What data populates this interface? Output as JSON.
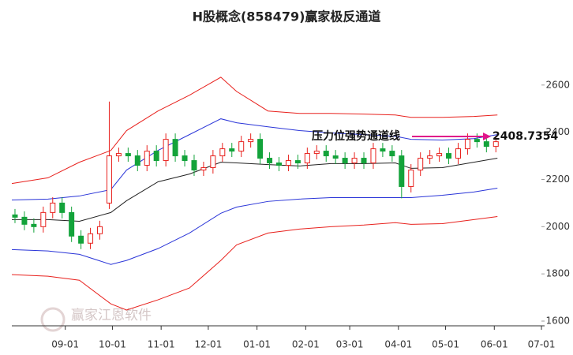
{
  "chart_data": {
    "type": "candlestick",
    "title": "H股概念(858479)赢家极反通道",
    "xlim": [
      0,
      339
    ],
    "ylim": [
      1580,
      2860
    ],
    "xticks": [
      {
        "value": 34,
        "label": "09-01"
      },
      {
        "value": 64,
        "label": "10-01"
      },
      {
        "value": 95,
        "label": "11-01"
      },
      {
        "value": 125,
        "label": "12-01"
      },
      {
        "value": 156,
        "label": "01-01"
      },
      {
        "value": 187,
        "label": "02-01"
      },
      {
        "value": 215,
        "label": "03-01"
      },
      {
        "value": 246,
        "label": "04-01"
      },
      {
        "value": 276,
        "label": "05-01"
      },
      {
        "value": 307,
        "label": "06-01"
      },
      {
        "value": 337,
        "label": "07-01"
      }
    ],
    "yticks": [
      1600,
      1800,
      2000,
      2200,
      2400,
      2600
    ],
    "up_color": "#e8211d",
    "down_color": "#13a33a",
    "candles": {
      "x": [
        2,
        8,
        14,
        20,
        26,
        32,
        38,
        44,
        50,
        56,
        62,
        68,
        74,
        80,
        86,
        92,
        98,
        104,
        110,
        116,
        122,
        128,
        134,
        140,
        146,
        152,
        158,
        164,
        170,
        176,
        182,
        188,
        194,
        200,
        206,
        212,
        218,
        224,
        230,
        236,
        242,
        248,
        254,
        260,
        266,
        272,
        278,
        284,
        290,
        296,
        302,
        308
      ],
      "open": [
        2050,
        2040,
        2010,
        2000,
        2060,
        2100,
        2060,
        1960,
        1930,
        1970,
        2100,
        2300,
        2310,
        2300,
        2260,
        2320,
        2280,
        2370,
        2300,
        2280,
        2240,
        2250,
        2300,
        2330,
        2320,
        2360,
        2370,
        2290,
        2270,
        2260,
        2280,
        2270,
        2310,
        2320,
        2300,
        2290,
        2270,
        2290,
        2270,
        2330,
        2320,
        2300,
        2170,
        2240,
        2290,
        2300,
        2310,
        2290,
        2330,
        2370,
        2360,
        2340
      ],
      "high": [
        2075,
        2065,
        2035,
        2085,
        2125,
        2125,
        2085,
        1985,
        1995,
        2025,
        2530,
        2335,
        2335,
        2325,
        2345,
        2345,
        2395,
        2395,
        2325,
        2305,
        2275,
        2325,
        2355,
        2355,
        2385,
        2395,
        2395,
        2315,
        2295,
        2305,
        2305,
        2335,
        2345,
        2345,
        2325,
        2315,
        2315,
        2315,
        2355,
        2355,
        2345,
        2325,
        2265,
        2315,
        2325,
        2335,
        2335,
        2355,
        2395,
        2395,
        2385,
        2385
      ],
      "low": [
        2015,
        1985,
        1975,
        1975,
        2035,
        2035,
        1935,
        1905,
        1905,
        1945,
        2075,
        2275,
        2275,
        2235,
        2235,
        2255,
        2255,
        2275,
        2255,
        2215,
        2215,
        2225,
        2275,
        2295,
        2295,
        2335,
        2265,
        2245,
        2235,
        2235,
        2245,
        2245,
        2285,
        2275,
        2265,
        2245,
        2245,
        2245,
        2245,
        2295,
        2275,
        2120,
        2145,
        2215,
        2265,
        2275,
        2265,
        2265,
        2305,
        2335,
        2315,
        2315
      ],
      "close": [
        2040,
        2010,
        2000,
        2060,
        2100,
        2060,
        1960,
        1930,
        1970,
        2000,
        2300,
        2310,
        2300,
        2260,
        2320,
        2280,
        2370,
        2300,
        2280,
        2240,
        2250,
        2300,
        2330,
        2320,
        2360,
        2370,
        2290,
        2270,
        2260,
        2280,
        2270,
        2310,
        2320,
        2300,
        2290,
        2270,
        2290,
        2270,
        2330,
        2320,
        2300,
        2170,
        2240,
        2290,
        2300,
        2310,
        2290,
        2330,
        2370,
        2360,
        2340,
        2360
      ]
    },
    "x": [
      0,
      23,
      43,
      63,
      73,
      93,
      113,
      133,
      143,
      163,
      183,
      203,
      224,
      244,
      254,
      274,
      294,
      309
    ],
    "series": [
      {
        "color": "#e8211d",
        "values": [
          2183,
          2207,
          2273,
          2323,
          2407,
          2490,
          2557,
          2633,
          2573,
          2490,
          2480,
          2480,
          2477,
          2473,
          2463,
          2463,
          2467,
          2473
        ]
      },
      {
        "color": "#2a35d8",
        "values": [
          2113,
          2117,
          2130,
          2157,
          2240,
          2323,
          2390,
          2457,
          2440,
          2423,
          2407,
          2397,
          2390,
          2383,
          2370,
          2367,
          2373,
          2390
        ]
      },
      {
        "color": "#222222",
        "values": [
          2030,
          2030,
          2023,
          2060,
          2110,
          2190,
          2223,
          2273,
          2270,
          2263,
          2257,
          2267,
          2267,
          2270,
          2247,
          2250,
          2273,
          2290
        ]
      },
      {
        "color": "#2a35d8",
        "values": [
          1903,
          1897,
          1883,
          1840,
          1857,
          1907,
          1973,
          2057,
          2083,
          2107,
          2117,
          2123,
          2123,
          2123,
          2123,
          2133,
          2147,
          2163
        ]
      },
      {
        "color": "#e8211d",
        "values": [
          1797,
          1790,
          1773,
          1673,
          1647,
          1690,
          1740,
          1857,
          1923,
          1973,
          1990,
          2000,
          2007,
          2017,
          2010,
          2013,
          2030,
          2043
        ]
      }
    ],
    "annotation": {
      "text": "压力位强势通道线",
      "value": 2408.7354,
      "color": "#e0158a"
    },
    "watermark": "赢家江恩软件"
  }
}
